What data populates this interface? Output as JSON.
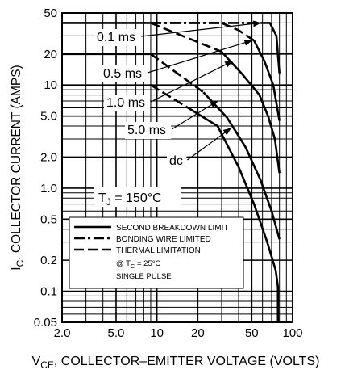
{
  "chart_data": {
    "type": "line",
    "scale": {
      "x": "log",
      "y": "log"
    },
    "xlim": [
      2,
      100
    ],
    "ylim": [
      0.05,
      50
    ],
    "grid": true,
    "xlabel": {
      "main": "V",
      "sub": "CE",
      "rest": ", COLLECTOR–EMITTER VOLTAGE (VOLTS)"
    },
    "ylabel": {
      "main": "I",
      "sub": "C",
      "rest": ", COLLECTOR CURRENT (AMPS)"
    },
    "x_ticks": [
      {
        "value": 2,
        "label": "2.0"
      },
      {
        "value": 5,
        "label": "5.0"
      },
      {
        "value": 10,
        "label": "10"
      },
      {
        "value": 20,
        "label": "20"
      },
      {
        "value": 50,
        "label": "50"
      },
      {
        "value": 100,
        "label": "100"
      }
    ],
    "y_ticks": [
      {
        "value": 0.05,
        "label": "0.05"
      },
      {
        "value": 0.1,
        "label": "0.1"
      },
      {
        "value": 0.2,
        "label": "0.2"
      },
      {
        "value": 0.5,
        "label": "0.5"
      },
      {
        "value": 1,
        "label": "1.0"
      },
      {
        "value": 2,
        "label": "2.0"
      },
      {
        "value": 5,
        "label": "5.0"
      },
      {
        "value": 10,
        "label": "10"
      },
      {
        "value": 20,
        "label": "20"
      },
      {
        "value": 50,
        "label": "50"
      }
    ],
    "series": [
      {
        "name": "0.1 ms",
        "segments": [
          {
            "style": "solid",
            "points": [
              [
                2,
                40
              ],
              [
                9,
                40
              ]
            ]
          },
          {
            "style": "dashdot",
            "points": [
              [
                9,
                40
              ],
              [
                58,
                40
              ]
            ]
          },
          {
            "style": "solid",
            "points": [
              [
                58,
                40
              ],
              [
                68,
                40
              ],
              [
                76,
                30
              ],
              [
                80,
                13
              ]
            ]
          }
        ]
      },
      {
        "name": "0.5 ms",
        "segments": [
          {
            "style": "dashdot",
            "points": [
              [
                9,
                40
              ],
              [
                30,
                40
              ]
            ]
          },
          {
            "style": "dashed",
            "points": [
              [
                30,
                40
              ],
              [
                40,
                34
              ],
              [
                52,
                27
              ]
            ]
          },
          {
            "style": "solid",
            "points": [
              [
                52,
                27
              ],
              [
                62,
                17
              ],
              [
                72,
                10
              ],
              [
                80,
                4.5
              ]
            ]
          }
        ]
      },
      {
        "name": "1.0 ms",
        "segments": [
          {
            "style": "dashed",
            "points": [
              [
                9,
                40
              ],
              [
                30,
                21
              ]
            ]
          },
          {
            "style": "solid",
            "points": [
              [
                30,
                21
              ],
              [
                42,
                13
              ],
              [
                57,
                8
              ],
              [
                66,
                5
              ],
              [
                74,
                3
              ],
              [
                80,
                1.4
              ]
            ]
          }
        ]
      },
      {
        "name": "5.0 ms",
        "segments": [
          {
            "style": "solid",
            "points": [
              [
                2,
                20
              ],
              [
                9,
                20
              ]
            ]
          },
          {
            "style": "dashed",
            "points": [
              [
                9,
                20
              ],
              [
                22,
                8.5
              ]
            ]
          },
          {
            "style": "solid",
            "points": [
              [
                22,
                8.5
              ],
              [
                33,
                4.8
              ],
              [
                45,
                2.5
              ],
              [
                58,
                1.2
              ],
              [
                70,
                0.6
              ],
              [
                80,
                0.32
              ]
            ]
          }
        ]
      },
      {
        "name": "dc",
        "segments": [
          {
            "style": "dashed",
            "points": [
              [
                9,
                10
              ],
              [
                17,
                6
              ]
            ]
          },
          {
            "style": "solid",
            "points": [
              [
                17,
                6
              ],
              [
                28,
                4
              ],
              [
                40,
                1.6
              ],
              [
                52,
                0.7
              ],
              [
                65,
                0.3
              ],
              [
                75,
                0.16
              ],
              [
                78,
                0.11
              ],
              [
                78,
                0.05
              ]
            ]
          }
        ]
      }
    ],
    "annotations": [
      {
        "text": "0.1 ms",
        "arrow_to": [
          58,
          40
        ]
      },
      {
        "text": "0.5 ms",
        "arrow_to": [
          50,
          27
        ]
      },
      {
        "text": "1.0 ms",
        "arrow_to": [
          36,
          17
        ]
      },
      {
        "text": "5.0 ms",
        "arrow_to": [
          28,
          7
        ]
      },
      {
        "text": "dc",
        "arrow_to": [
          35,
          3.8
        ]
      }
    ],
    "condition": {
      "main": "T",
      "sub": "J",
      "rest": " = 150°C"
    },
    "legend": {
      "placement": "bottom-left",
      "entries": [
        {
          "style": "solid",
          "label": "SECOND BREAKDOWN LIMIT"
        },
        {
          "style": "dashdot",
          "label": "BONDING WIRE LIMITED"
        },
        {
          "style": "dashed",
          "label": "THERMAL LIMITATION"
        }
      ],
      "notes": [
        {
          "main": "@ T",
          "sub": "C",
          "rest": " = 25°C"
        },
        {
          "main": "SINGLE PULSE",
          "sub": "",
          "rest": ""
        }
      ]
    }
  }
}
